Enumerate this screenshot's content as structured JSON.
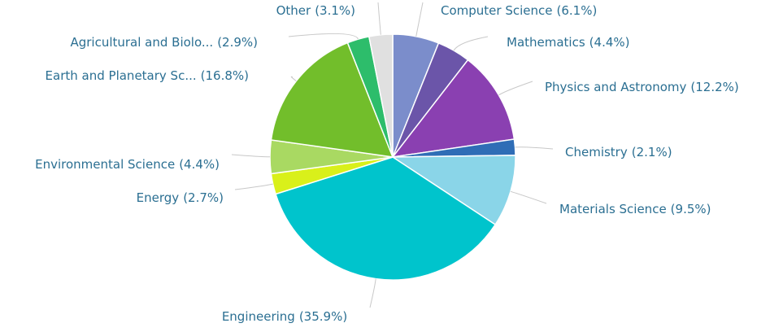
{
  "chart_data": {
    "type": "pie",
    "categories": [
      "Computer Science",
      "Mathematics",
      "Physics and Astronomy",
      "Chemistry",
      "Materials Science",
      "Engineering",
      "Energy",
      "Environmental Science",
      "Earth and Planetary Sc...",
      "Agricultural and Biolo...",
      "Other"
    ],
    "values": [
      6.1,
      4.4,
      12.2,
      2.1,
      9.5,
      35.9,
      2.7,
      4.4,
      16.8,
      2.9,
      3.1
    ],
    "value_labels": [
      "(6.1%)",
      "(4.4%)",
      "(12.2%)",
      "(2.1%)",
      "(9.5%)",
      "(35.9%)",
      "(2.7%)",
      "(4.4%)",
      "(16.8%)",
      "(2.9%)",
      "(3.1%)"
    ],
    "colors": [
      "#7b8dcb",
      "#6b55a9",
      "#8a40b1",
      "#2f6db6",
      "#8ad5e8",
      "#00c4cc",
      "#d9f01a",
      "#a9d962",
      "#72be2b",
      "#2dbd6b",
      "#e0e0e0"
    ]
  }
}
